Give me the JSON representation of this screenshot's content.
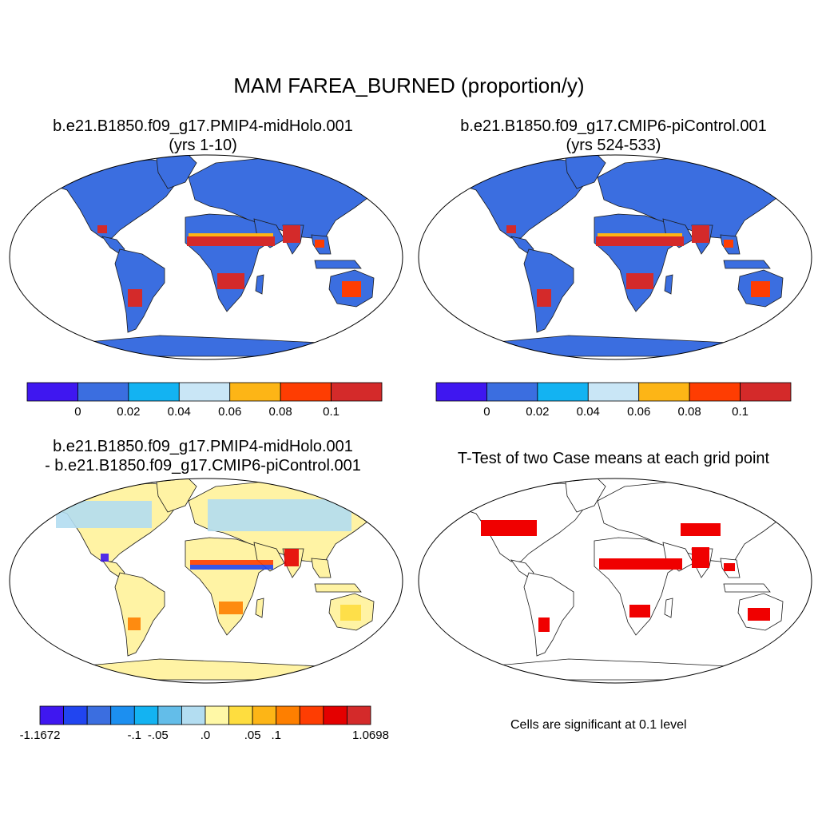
{
  "main_title": "MAM FAREA_BURNED (proportion/y)",
  "panels": [
    {
      "line1": "b.e21.B1850.f09_g17.PMIP4-midHolo.001",
      "line2": "(yrs 1-10)"
    },
    {
      "line1": "b.e21.B1850.f09_g17.CMIP6-piControl.001",
      "line2": "(yrs 524-533)"
    },
    {
      "line1": "b.e21.B1850.f09_g17.PMIP4-midHolo.001",
      "line2": "- b.e21.B1850.f09_g17.CMIP6-piControl.001"
    },
    {
      "line1": "T-Test of two Case means at each grid point",
      "line2": ""
    }
  ],
  "colorbar_top": {
    "colors": [
      "#3f17f0",
      "#3b6ee0",
      "#13b3f2",
      "#c9e6f6",
      "#fdb516",
      "#fe3d02",
      "#d42a2a"
    ],
    "labels": [
      "0",
      "0.02",
      "0.04",
      "0.06",
      "0.08",
      "0.1"
    ]
  },
  "colorbar_diff": {
    "colors": [
      "#3f17f0",
      "#2145f0",
      "#3b6ee0",
      "#1c8ff0",
      "#13b3f2",
      "#63bde9",
      "#b3ddf1",
      "#fff8a6",
      "#fedd3f",
      "#fdb516",
      "#fe7f00",
      "#fe3d02",
      "#e40000",
      "#d42a2a"
    ],
    "labels": [
      "-1.1672",
      "-.1",
      "-.05",
      ".0",
      ".05",
      ".1",
      "1.0698"
    ]
  },
  "ttest_note": "Cells are significant at 0.1 level",
  "colors": {
    "land_base": "#3b6ee0",
    "diff_base": "#fff3a4",
    "sig": "#f00000"
  }
}
